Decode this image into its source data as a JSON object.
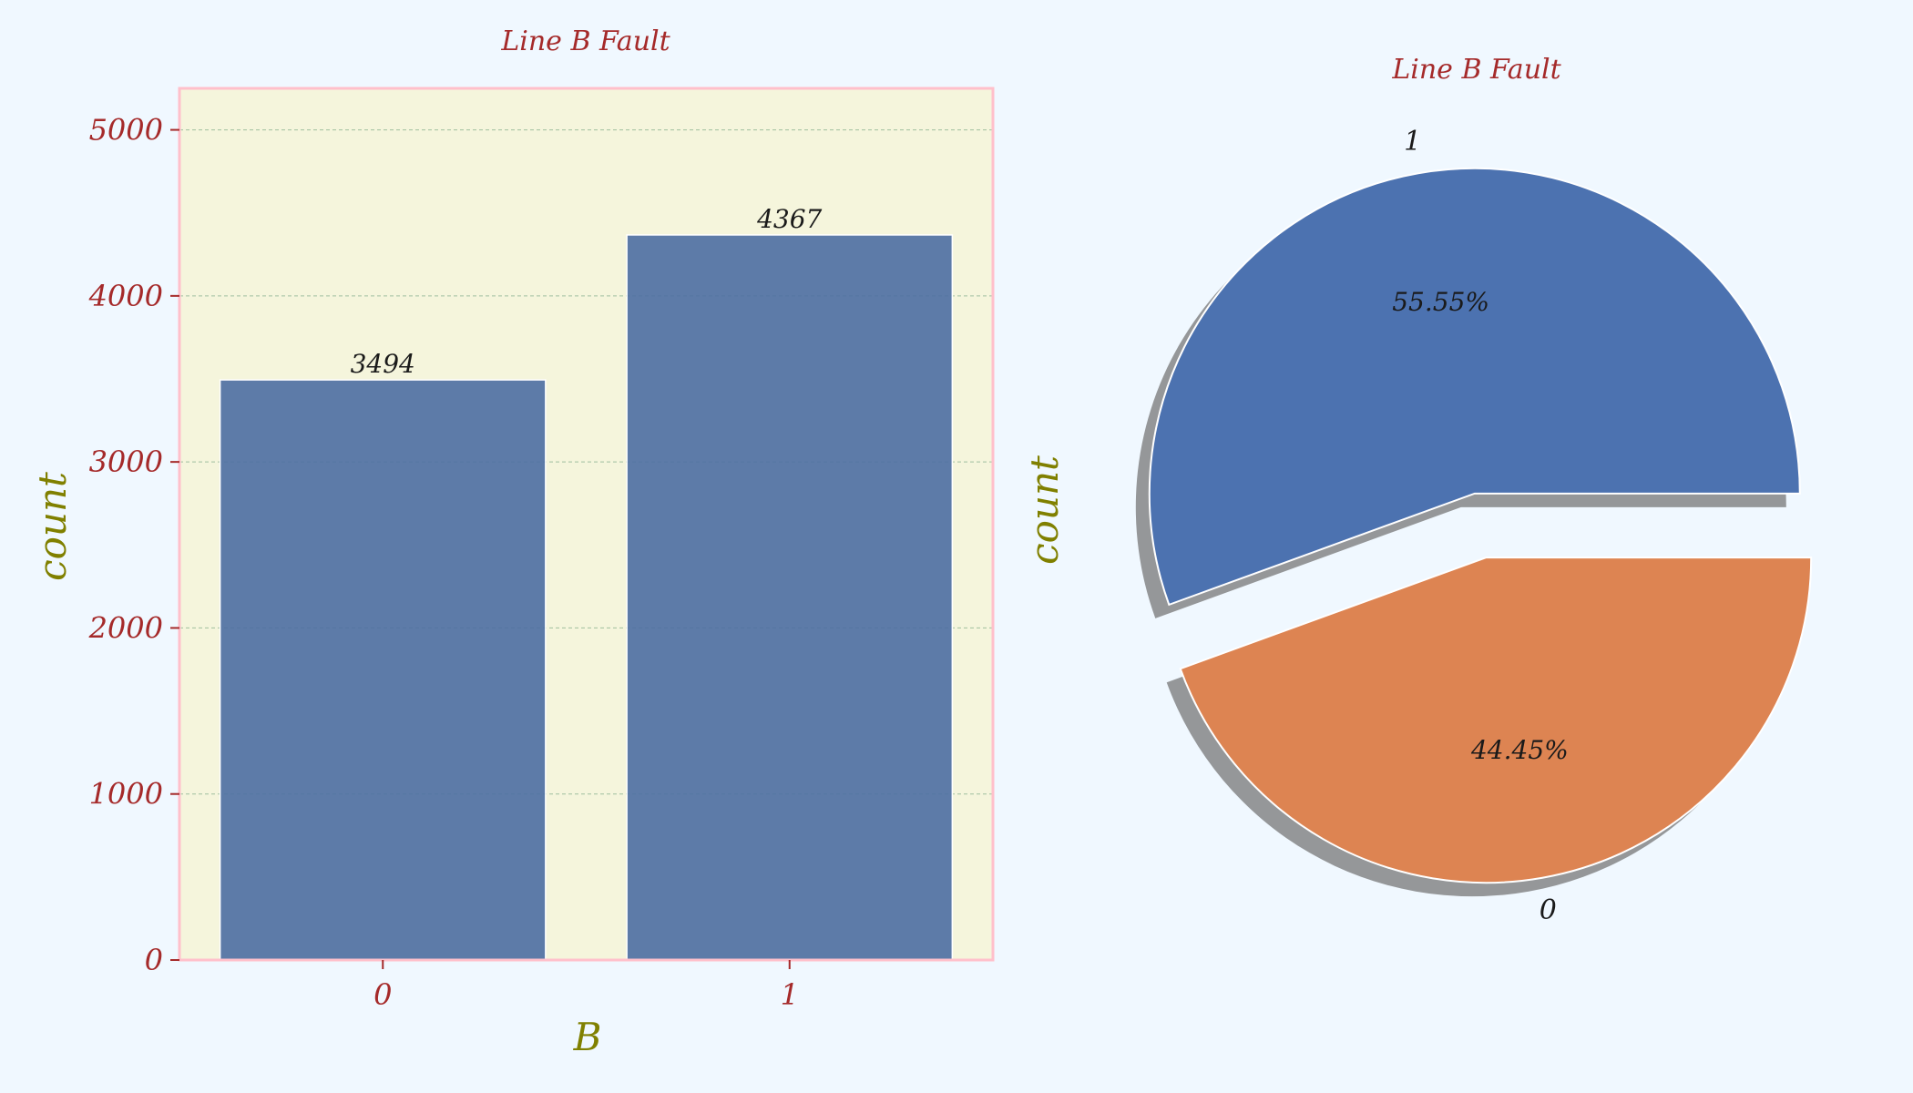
{
  "colors": {
    "figure_bg": "#f0f8ff",
    "axes_bg": "#f5f5dc",
    "axes_border": "#ffc0cb",
    "tick_text": "#a52a2a",
    "axis_label": "#808000",
    "title": "#a52a2a",
    "bar": "#4c6ea2",
    "pie_1": "#4c72b0",
    "pie_0": "#dd8452",
    "shadow": "#6e6e6e",
    "value_text": "#1a1a1a",
    "grid": "#9fbf9f"
  },
  "chart_data": [
    {
      "type": "bar",
      "title": "Line B Fault",
      "xlabel": "B",
      "ylabel": "count",
      "categories": [
        "0",
        "1"
      ],
      "values": [
        3494,
        4367
      ],
      "data_labels": [
        "3494",
        "4367"
      ],
      "ylim": [
        0,
        5250
      ],
      "yticks": [
        0,
        1000,
        2000,
        3000,
        4000,
        5000
      ],
      "ytick_labels": [
        "0",
        "1000",
        "2000",
        "3000",
        "4000",
        "5000"
      ],
      "grid": true
    },
    {
      "type": "pie",
      "title": "Line B Fault",
      "ylabel": "count",
      "labels": [
        "1",
        "0"
      ],
      "values": [
        4367,
        3494
      ],
      "percent_labels": [
        "55.55%",
        "44.45%"
      ],
      "exploded": true,
      "shadow": true
    }
  ]
}
